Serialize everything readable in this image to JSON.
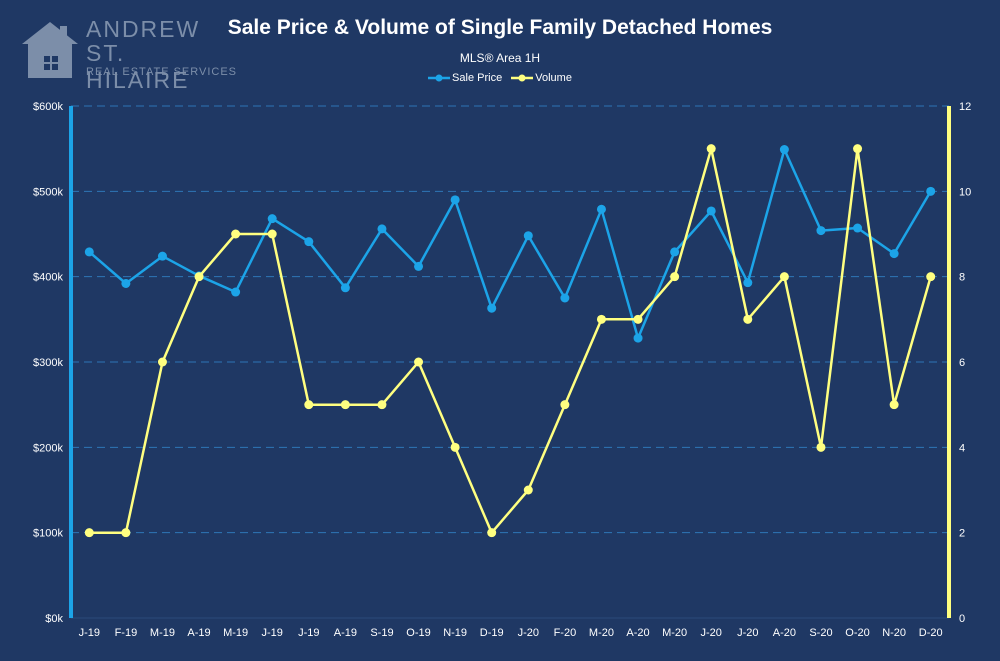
{
  "logo": {
    "line1": "ANDREW",
    "line2": "ST. HILAIRE",
    "line3": "REAL ESTATE SERVICES"
  },
  "chart_data": {
    "type": "line",
    "title": "Sale Price & Volume of Single Family Detached Homes",
    "subtitle": "MLS® Area 1H",
    "categories": [
      "J-19",
      "F-19",
      "M-19",
      "A-19",
      "M-19",
      "J-19",
      "J-19",
      "A-19",
      "S-19",
      "O-19",
      "N-19",
      "D-19",
      "J-20",
      "F-20",
      "M-20",
      "A-20",
      "M-20",
      "J-20",
      "J-20",
      "A-20",
      "S-20",
      "O-20",
      "N-20",
      "D-20"
    ],
    "series": [
      {
        "name": "Sale Price",
        "axis": "left",
        "color": "#1ca4e8",
        "values": [
          429000,
          392000,
          424000,
          401000,
          382000,
          468000,
          441000,
          387000,
          456000,
          412000,
          490000,
          363000,
          448000,
          375000,
          479000,
          328000,
          429000,
          477000,
          393000,
          549000,
          454000,
          457000,
          427000,
          500000
        ]
      },
      {
        "name": "Volume",
        "axis": "right",
        "color": "#ffff80",
        "values": [
          2,
          2,
          6,
          8,
          9,
          9,
          5,
          5,
          5,
          6,
          4,
          2,
          3,
          5,
          7,
          7,
          8,
          11,
          7,
          8,
          4,
          11,
          5,
          8
        ]
      }
    ],
    "y_left": {
      "ylim": [
        0,
        600000
      ],
      "ticks": [
        0,
        100000,
        200000,
        300000,
        400000,
        500000,
        600000
      ],
      "tick_labels": [
        "$0k",
        "$100k",
        "$200k",
        "$300k",
        "$400k",
        "$500k",
        "$600k"
      ]
    },
    "y_right": {
      "ylim": [
        0,
        12
      ],
      "ticks": [
        0,
        2,
        4,
        6,
        8,
        10,
        12
      ],
      "tick_labels": [
        "0",
        "2",
        "4",
        "6",
        "8",
        "10",
        "12"
      ]
    },
    "grid": "horizontal dashed",
    "legend_position": "top-center",
    "colors": {
      "background": "#1f3864",
      "gridline": "#2e75b6",
      "text": "#ffffff",
      "left_axis": "#1ca4e8",
      "right_axis": "#ffff80"
    }
  }
}
